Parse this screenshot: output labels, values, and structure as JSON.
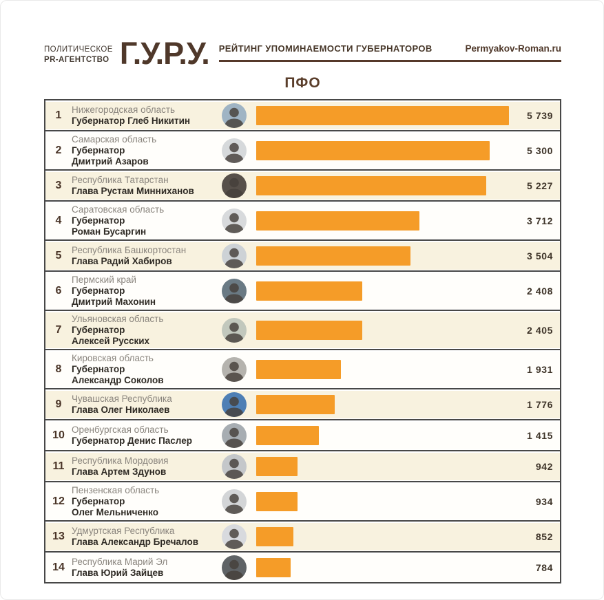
{
  "header": {
    "agency_line1": "ПОЛИТИЧЕСКОЕ",
    "agency_line2": "PR-АГЕНТСТВО",
    "logo": "Г.У.Р.У.",
    "title": "РЕЙТИНГ УПОМИНАЕМОСТИ ГУБЕРНАТОРОВ",
    "site": "Permyakov-Roman.ru"
  },
  "section_title": "ПФО",
  "theme": {
    "brand_brown": "#4f382a",
    "accent_orange": "#f59c28",
    "row_cream": "#f8f2df",
    "row_white": "#fffefb",
    "divider_gray": "#474747",
    "region_gray": "#8a857e",
    "name_dark": "#2e2a24",
    "rank_brown": "#4a3528",
    "value_dark": "#3e3429"
  },
  "chart_data": {
    "type": "bar",
    "title": "ПФО",
    "subtitle": "РЕЙТИНГ УПОМИНАЕМОСТИ ГУБЕРНАТОРОВ",
    "orientation": "horizontal",
    "max_value": 5739,
    "xlim": [
      0,
      5739
    ],
    "categories": [
      "Нижегородская область",
      "Самарская область",
      "Республика Татарстан",
      "Саратовская область",
      "Республика Башкортостан",
      "Пермский край",
      "Ульяновская область",
      "Кировская область",
      "Чувашская Республика",
      "Оренбургская область",
      "Республика Мордовия",
      "Пензенская область",
      "Удмуртская Республика",
      "Республика Марий Эл"
    ],
    "values": [
      5739,
      5300,
      5227,
      3712,
      3504,
      2408,
      2405,
      1931,
      1776,
      1415,
      942,
      934,
      852,
      784
    ],
    "rows": [
      {
        "rank": "1",
        "region": "Нижегородская область",
        "lines": [
          "Губернатор Глеб Никитин"
        ],
        "value": 5739,
        "value_label": "5 739",
        "photo_tint": "#9fb4c4"
      },
      {
        "rank": "2",
        "region": "Самарская область",
        "lines": [
          "Губернатор",
          "Дмитрий Азаров"
        ],
        "value": 5300,
        "value_label": "5 300",
        "photo_tint": "#d6d9db"
      },
      {
        "rank": "3",
        "region": "Республика Татарстан",
        "lines": [
          "Глава Рустам Минниханов"
        ],
        "value": 5227,
        "value_label": "5 227",
        "photo_tint": "#57504a"
      },
      {
        "rank": "4",
        "region": "Саратовская область",
        "lines": [
          "Губернатор",
          "Роман Бусаргин"
        ],
        "value": 3712,
        "value_label": "3 712",
        "photo_tint": "#d8dadc"
      },
      {
        "rank": "5",
        "region": "Республика Башкортостан",
        "lines": [
          "Глава Радий Хабиров"
        ],
        "value": 3504,
        "value_label": "3 504",
        "photo_tint": "#cdd2d6"
      },
      {
        "rank": "6",
        "region": "Пермский край",
        "lines": [
          "Губернатор",
          "Дмитрий Махонин"
        ],
        "value": 2408,
        "value_label": "2 408",
        "photo_tint": "#6a7a84"
      },
      {
        "rank": "7",
        "region": "Ульяновская область",
        "lines": [
          "Губернатор",
          "Алексей Русских"
        ],
        "value": 2405,
        "value_label": "2 405",
        "photo_tint": "#c2c8bd"
      },
      {
        "rank": "8",
        "region": "Кировская область",
        "lines": [
          "Губернатор",
          "Александр Соколов"
        ],
        "value": 1931,
        "value_label": "1 931",
        "photo_tint": "#b5b3ae"
      },
      {
        "rank": "9",
        "region": "Чувашская Республика",
        "lines": [
          "Глава Олег Николаев"
        ],
        "value": 1776,
        "value_label": "1 776",
        "photo_tint": "#4e7fb5"
      },
      {
        "rank": "10",
        "region": "Оренбургская область",
        "lines": [
          "Губернатор Денис Паслер"
        ],
        "value": 1415,
        "value_label": "1 415",
        "photo_tint": "#a7adb2"
      },
      {
        "rank": "11",
        "region": "Республика Мордовия",
        "lines": [
          "Глава Артем Здунов"
        ],
        "value": 942,
        "value_label": "942",
        "photo_tint": "#c4c7ca"
      },
      {
        "rank": "12",
        "region": "Пензенская область",
        "lines": [
          "Губернатор",
          "Олег Мельниченко"
        ],
        "value": 934,
        "value_label": "934",
        "photo_tint": "#d3d5d7"
      },
      {
        "rank": "13",
        "region": "Удмуртская Республика",
        "lines": [
          "Глава Александр Бречалов"
        ],
        "value": 852,
        "value_label": "852",
        "photo_tint": "#d8dade"
      },
      {
        "rank": "14",
        "region": "Республика Марий Эл",
        "lines": [
          "Глава Юрий Зайцев"
        ],
        "value": 784,
        "value_label": "784",
        "photo_tint": "#5f6366"
      }
    ]
  }
}
